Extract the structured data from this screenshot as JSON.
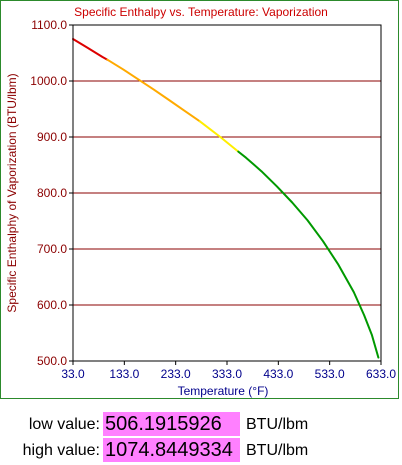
{
  "chart_data": {
    "type": "line",
    "title": "Specific Enthalpy vs. Temperature: Vaporization",
    "xlabel": "Temperature (°F)",
    "ylabel": "Specific Enthalphy of Vaporization (BTU/lbm)",
    "xlim": [
      33,
      633
    ],
    "ylim": [
      500,
      1100
    ],
    "x_ticks": [
      "33.0",
      "133.0",
      "233.0",
      "333.0",
      "433.0",
      "533.0",
      "633.0"
    ],
    "y_ticks": [
      "500.0",
      "600.0",
      "700.0",
      "800.0",
      "900.0",
      "1000.0",
      "1100.0"
    ],
    "grid": "horizontal",
    "series": [
      {
        "color": "#dd0000",
        "x": [
          33,
          60,
          90,
          100
        ],
        "y": [
          1075,
          1060,
          1043,
          1038
        ]
      },
      {
        "color": "#ffaa00",
        "x": [
          100,
          130,
          160,
          190,
          220,
          250,
          280
        ],
        "y": [
          1038,
          1021,
          1003,
          985,
          966,
          947,
          928
        ]
      },
      {
        "color": "#ffee00",
        "x": [
          280,
          300,
          320,
          340,
          355
        ],
        "y": [
          928,
          914,
          900,
          885,
          874
        ]
      },
      {
        "color": "#009900",
        "x": [
          355,
          370,
          400,
          430,
          460,
          490,
          520,
          550,
          580,
          600,
          615,
          628
        ],
        "y": [
          874,
          863,
          839,
          812,
          783,
          751,
          714,
          672,
          623,
          582,
          547,
          506
        ]
      }
    ]
  },
  "readouts": {
    "low_label": "low value:",
    "low_value": "506.1915926",
    "high_label": "high value:",
    "high_value": "1074.8449334",
    "unit": "BTU/lbm"
  }
}
